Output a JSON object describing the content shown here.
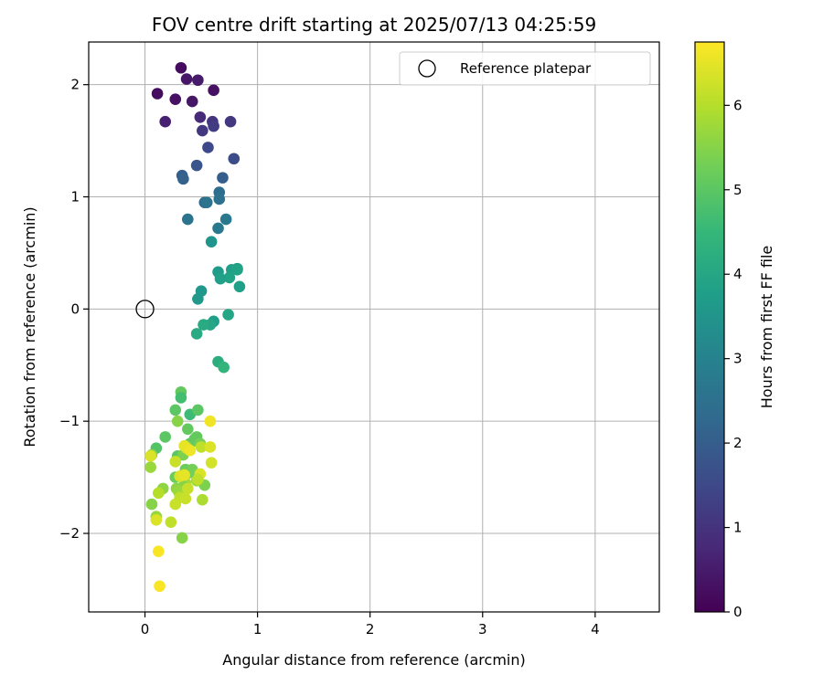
{
  "chart_data": {
    "type": "scatter",
    "title": "FOV centre drift starting at 2025/07/13 04:25:59",
    "xlabel": "Angular distance from reference (arcmin)",
    "ylabel": "Rotation from reference (arcmin)",
    "xlim": [
      -0.5,
      4.57
    ],
    "ylim": [
      -2.7,
      2.38
    ],
    "xticks": [
      0,
      1,
      2,
      3,
      4
    ],
    "xtick_labels": [
      "0",
      "1",
      "2",
      "3",
      "4"
    ],
    "yticks": [
      -2,
      -1,
      0,
      1,
      2
    ],
    "ytick_labels": [
      "−2",
      "−1",
      "0",
      "1",
      "2"
    ],
    "grid": true,
    "legend": {
      "placement": "top-right",
      "label": "Reference platepar"
    },
    "reference_point": {
      "x": 0,
      "y": 0,
      "marker": "open-circle"
    },
    "colorbar": {
      "label": "Hours from first FF file",
      "colormap": "viridis",
      "range": [
        0,
        6.75
      ],
      "ticks": [
        0,
        1,
        2,
        3,
        4,
        5,
        6
      ],
      "tick_labels": [
        "0",
        "1",
        "2",
        "3",
        "4",
        "5",
        "6"
      ]
    },
    "colors": {
      "viridis_stops": [
        "#440154",
        "#482878",
        "#3e4989",
        "#31688e",
        "#26828e",
        "#1f9e89",
        "#35b779",
        "#6ece58",
        "#b5de2b",
        "#fde725"
      ]
    },
    "series": [
      {
        "x": [
          0.32,
          0.37,
          0.47,
          0.61,
          0.11,
          0.27,
          0.42,
          0.18,
          0.49,
          0.6,
          0.76,
          0.51,
          0.61,
          0.56,
          0.79,
          0.46,
          0.33,
          0.34,
          0.69,
          0.66,
          0.66,
          0.53,
          0.55,
          0.38,
          0.65,
          0.72,
          0.59,
          0.82,
          0.77,
          0.65,
          0.82,
          0.75,
          0.67,
          0.84,
          0.5,
          0.47,
          0.61,
          0.58,
          0.52,
          0.74,
          0.46,
          0.65,
          0.7,
          0.32,
          0.32,
          0.4,
          0.47,
          0.27,
          0.29,
          0.38,
          0.18,
          0.46,
          0.44,
          0.4,
          0.1,
          0.49,
          0.37,
          0.29,
          0.34,
          0.06,
          0.36,
          0.42,
          0.27,
          0.05,
          0.35,
          0.39,
          0.27,
          0.46,
          0.36,
          0.53,
          0.34,
          0.16,
          0.06,
          0.28,
          0.3,
          0.5,
          0.58,
          0.59,
          0.49,
          0.37,
          0.35,
          0.58,
          0.4,
          0.38,
          0.31,
          0.47,
          0.36,
          0.12,
          0.27,
          0.31,
          0.35,
          0.51,
          0.05,
          0.1,
          0.23,
          0.1,
          0.33,
          0.12,
          0.13
        ],
        "y": [
          2.15,
          2.05,
          2.04,
          1.95,
          1.92,
          1.87,
          1.85,
          1.67,
          1.71,
          1.67,
          1.67,
          1.59,
          1.63,
          1.44,
          1.34,
          1.28,
          1.19,
          1.16,
          1.17,
          1.04,
          0.98,
          0.95,
          0.95,
          0.8,
          0.72,
          0.8,
          0.6,
          0.36,
          0.35,
          0.33,
          0.35,
          0.28,
          0.27,
          0.2,
          0.16,
          0.09,
          -0.11,
          -0.14,
          -0.14,
          -0.05,
          -0.22,
          -0.47,
          -0.52,
          -0.74,
          -0.79,
          -0.94,
          -0.9,
          -0.9,
          -1.0,
          -1.07,
          -1.14,
          -1.14,
          -1.16,
          -1.2,
          -1.24,
          -1.2,
          -1.23,
          -1.31,
          -1.3,
          -1.3,
          -1.43,
          -1.43,
          -1.36,
          -1.41,
          -1.47,
          -1.46,
          -1.5,
          -1.53,
          -1.55,
          -1.57,
          -1.58,
          -1.6,
          -1.74,
          -1.6,
          -1.63,
          -1.23,
          -1.23,
          -1.37,
          -1.47,
          -1.24,
          -1.22,
          -1.0,
          -1.26,
          -1.6,
          -1.68,
          -1.52,
          -1.69,
          -1.64,
          -1.74,
          -1.49,
          -1.48,
          -1.7,
          -1.31,
          -1.85,
          -1.9,
          -1.88,
          -2.04,
          -2.16,
          -2.47
        ],
        "hours": [
          0.2,
          0.4,
          0.5,
          0.3,
          0.2,
          0.3,
          0.4,
          0.6,
          0.8,
          1.0,
          1.1,
          1.1,
          1.2,
          1.5,
          1.6,
          1.8,
          2.0,
          2.1,
          2.0,
          2.4,
          2.5,
          2.3,
          2.6,
          2.6,
          2.7,
          2.7,
          3.5,
          3.6,
          3.8,
          3.7,
          3.9,
          3.9,
          3.8,
          3.8,
          3.6,
          3.6,
          3.8,
          4.0,
          4.1,
          4.0,
          4.1,
          4.2,
          4.4,
          5.1,
          4.7,
          4.6,
          5.0,
          5.0,
          5.5,
          5.1,
          5.0,
          5.1,
          5.1,
          5.1,
          4.9,
          5.3,
          5.6,
          5.0,
          5.4,
          5.6,
          5.2,
          5.3,
          6.2,
          5.7,
          5.5,
          5.3,
          5.2,
          5.7,
          5.8,
          5.4,
          5.5,
          5.6,
          5.5,
          5.6,
          5.7,
          6.1,
          6.4,
          6.3,
          6.4,
          6.4,
          6.5,
          6.6,
          6.6,
          6.2,
          6.1,
          6.1,
          6.2,
          6.0,
          6.2,
          6.4,
          6.5,
          5.9,
          6.4,
          5.7,
          6.1,
          6.4,
          5.5,
          6.7,
          6.7
        ]
      }
    ]
  }
}
